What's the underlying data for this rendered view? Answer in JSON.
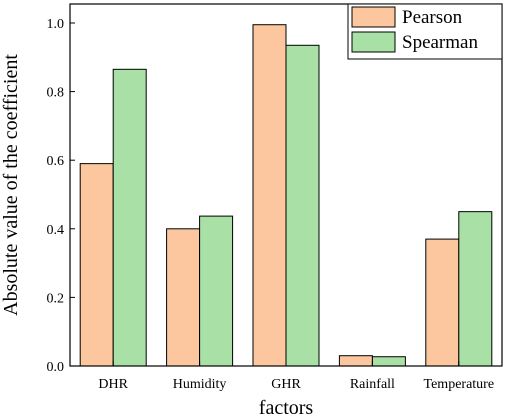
{
  "chart_data": {
    "type": "bar",
    "categories": [
      "DHR",
      "Humidity",
      "GHR",
      "Rainfall",
      "Temperature"
    ],
    "series": [
      {
        "name": "Pearson",
        "values": [
          0.59,
          0.4,
          0.995,
          0.03,
          0.37
        ],
        "color": "#fcc79f"
      },
      {
        "name": "Spearman",
        "values": [
          0.865,
          0.437,
          0.935,
          0.027,
          0.45
        ],
        "color": "#a8e0a6"
      }
    ],
    "xlabel": "factors",
    "ylabel": "Absolute value of the coefficient",
    "ylim": [
      0,
      1.0
    ],
    "yticks": [
      "0.0",
      "0.2",
      "0.4",
      "0.6",
      "0.8",
      "1.0"
    ],
    "grid": false,
    "legend_position": "top-right"
  }
}
